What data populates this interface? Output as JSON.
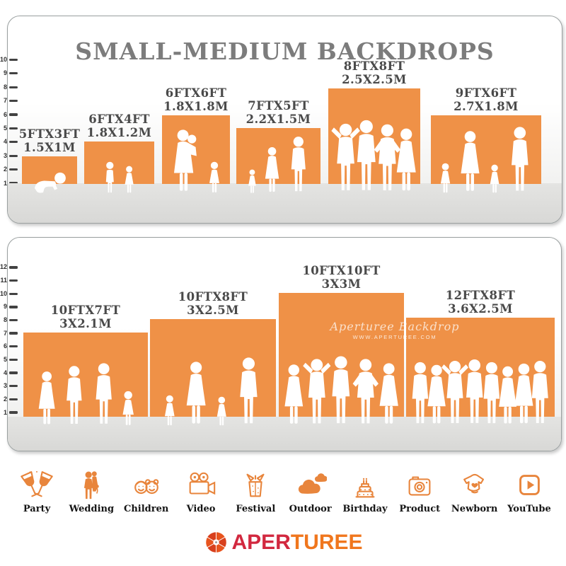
{
  "title": "SMALL-MEDIUM BACKDROPS",
  "top_panel": {
    "ruler_labels": [
      "1",
      "2",
      "3",
      "4",
      "5",
      "6",
      "7",
      "8",
      "9",
      "10"
    ],
    "backdrops": [
      {
        "size_ft": "5FTX3FT",
        "size_m": "1.5X1M"
      },
      {
        "size_ft": "6FTX4FT",
        "size_m": "1.8X1.2M"
      },
      {
        "size_ft": "6FTX6FT",
        "size_m": "1.8X1.8M"
      },
      {
        "size_ft": "7FTX5FT",
        "size_m": "2.2X1.5M"
      },
      {
        "size_ft": "8FTX8FT",
        "size_m": "2.5X2.5M"
      },
      {
        "size_ft": "9FTX6FT",
        "size_m": "2.7X1.8M"
      }
    ]
  },
  "bottom_panel": {
    "ruler_labels": [
      "1",
      "2",
      "3",
      "4",
      "5",
      "6",
      "7",
      "8",
      "9",
      "10",
      "11",
      "12"
    ],
    "backdrops": [
      {
        "size_ft": "10FTX7FT",
        "size_m": "3X2.1M"
      },
      {
        "size_ft": "10FTX8FT",
        "size_m": "3X2.5M"
      },
      {
        "size_ft": "10FTX10FT",
        "size_m": "3X3M"
      },
      {
        "size_ft": "12FTX8FT",
        "size_m": "3.6X2.5M"
      }
    ],
    "watermark_line1": "Aperturee Backdrop",
    "watermark_line2": "WWW.APERTUREE.COM"
  },
  "categories": [
    {
      "label": "Party",
      "icon": "party-icon"
    },
    {
      "label": "Wedding",
      "icon": "wedding-icon"
    },
    {
      "label": "Children",
      "icon": "children-icon"
    },
    {
      "label": "Video",
      "icon": "video-icon"
    },
    {
      "label": "Festival",
      "icon": "festival-icon"
    },
    {
      "label": "Outdoor",
      "icon": "outdoor-icon"
    },
    {
      "label": "Birthday",
      "icon": "birthday-icon"
    },
    {
      "label": "Product",
      "icon": "product-icon"
    },
    {
      "label": "Newborn",
      "icon": "newborn-icon"
    },
    {
      "label": "YouTube",
      "icon": "youtube-icon"
    }
  ],
  "logo": {
    "part1": "APER",
    "part2": "TUREE"
  },
  "colors": {
    "backdrop_orange": "#EF9147",
    "icon_orange": "#E8853C",
    "title_gray": "#7C7C7C",
    "logo_red": "#D2283F",
    "logo_orange": "#F0761D",
    "silhouette_white": "#FFFFFF"
  }
}
